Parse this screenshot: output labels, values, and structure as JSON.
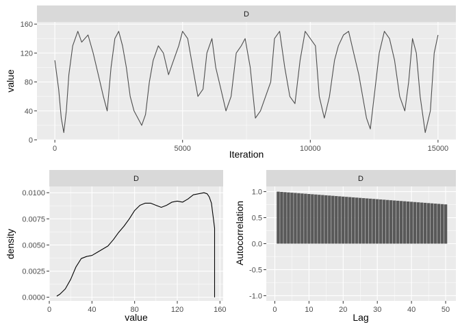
{
  "colors": {
    "panel_bg": "#ebebeb",
    "grid_major": "#ffffff",
    "strip_bg": "#d9d9d9",
    "trace_line": "#4d4d4d",
    "density_line": "#000000",
    "acf_bar": "#595959",
    "tick_text": "#4d4d4d"
  },
  "chart_data": [
    {
      "type": "line",
      "name": "trace",
      "strip": "D",
      "xlabel": "Iteration",
      "ylabel": "value",
      "xlim": [
        -700,
        15700
      ],
      "ylim": [
        0,
        163
      ],
      "x_ticks": [
        0,
        5000,
        10000,
        15000
      ],
      "y_ticks": [
        0,
        40,
        80,
        120,
        160
      ],
      "grid": true,
      "series": [
        {
          "x": [
            0,
            150,
            250,
            350,
            450,
            550,
            700,
            900,
            1050,
            1300,
            1500,
            1700,
            1900,
            2050,
            2200,
            2350,
            2500,
            2650,
            2800,
            2950,
            3100,
            3250,
            3400,
            3550,
            3700,
            3850,
            4050,
            4250,
            4450,
            4650,
            4850,
            5000,
            5200,
            5400,
            5600,
            5800,
            5950,
            6150,
            6300,
            6500,
            6700,
            6900,
            7100,
            7300,
            7450,
            7650,
            7850,
            8050,
            8250,
            8450,
            8600,
            8800,
            9000,
            9200,
            9400,
            9600,
            9800,
            10000,
            10200,
            10350,
            10550,
            10750,
            10950,
            11100,
            11300,
            11500,
            11700,
            11900,
            12050,
            12200,
            12350,
            12500,
            12700,
            12900,
            13100,
            13300,
            13500,
            13700,
            13850,
            14000,
            14150,
            14300,
            14500,
            14700,
            14850,
            15000
          ],
          "y": [
            110,
            70,
            30,
            10,
            40,
            90,
            130,
            150,
            135,
            145,
            120,
            90,
            60,
            40,
            100,
            140,
            150,
            130,
            100,
            60,
            40,
            30,
            20,
            35,
            80,
            110,
            130,
            120,
            90,
            110,
            130,
            150,
            140,
            100,
            60,
            70,
            120,
            140,
            100,
            70,
            40,
            60,
            120,
            130,
            140,
            100,
            30,
            40,
            60,
            80,
            140,
            150,
            100,
            60,
            50,
            110,
            150,
            140,
            130,
            60,
            30,
            60,
            110,
            130,
            145,
            150,
            120,
            90,
            60,
            30,
            15,
            60,
            120,
            150,
            140,
            110,
            60,
            40,
            80,
            140,
            120,
            60,
            10,
            40,
            120,
            145
          ]
        }
      ]
    },
    {
      "type": "line",
      "name": "density",
      "strip": "D",
      "xlabel": "value",
      "ylabel": "density",
      "xlim": [
        0,
        163
      ],
      "ylim": [
        -0.00035,
        0.0106
      ],
      "x_ticks": [
        0,
        40,
        80,
        120,
        160
      ],
      "y_ticks": [
        0.0,
        0.0025,
        0.005,
        0.0075,
        0.01
      ],
      "y_tick_labels": [
        "0.0000",
        "0.0025",
        "0.0050",
        "0.0075",
        "0.0100"
      ],
      "grid": true,
      "series": [
        {
          "x": [
            7,
            10,
            15,
            20,
            25,
            30,
            35,
            40,
            45,
            50,
            55,
            60,
            65,
            70,
            75,
            80,
            85,
            90,
            95,
            100,
            105,
            110,
            115,
            120,
            125,
            130,
            135,
            140,
            145,
            148,
            150,
            152,
            153,
            154,
            155,
            155
          ],
          "y": [
            0.0001,
            0.0003,
            0.0008,
            0.0017,
            0.0029,
            0.0037,
            0.0039,
            0.004,
            0.0043,
            0.0046,
            0.0049,
            0.0055,
            0.0062,
            0.0068,
            0.0075,
            0.0083,
            0.0088,
            0.009,
            0.009,
            0.0088,
            0.0086,
            0.0088,
            0.0091,
            0.0092,
            0.0091,
            0.0094,
            0.0098,
            0.0099,
            0.01,
            0.0099,
            0.0096,
            0.009,
            0.0082,
            0.0074,
            0.0066,
            0.0
          ]
        }
      ]
    },
    {
      "type": "bar",
      "name": "autocorrelation",
      "strip": "D",
      "xlabel": "Lag",
      "ylabel": "Autocorrelation",
      "xlim": [
        -2.5,
        53
      ],
      "ylim": [
        -1.1,
        1.1
      ],
      "x_ticks": [
        0,
        10,
        20,
        30,
        40,
        50
      ],
      "y_ticks": [
        -1.0,
        -0.5,
        0.0,
        0.5,
        1.0
      ],
      "y_tick_labels": [
        "-1.0",
        "-0.5",
        "0.0",
        "0.5",
        "1.0"
      ],
      "grid": true,
      "categories": [
        1,
        2,
        3,
        4,
        5,
        6,
        7,
        8,
        9,
        10,
        11,
        12,
        13,
        14,
        15,
        16,
        17,
        18,
        19,
        20,
        21,
        22,
        23,
        24,
        25,
        26,
        27,
        28,
        29,
        30,
        31,
        32,
        33,
        34,
        35,
        36,
        37,
        38,
        39,
        40,
        41,
        42,
        43,
        44,
        45,
        46,
        47,
        48,
        49,
        50
      ],
      "values": [
        1.0,
        0.995,
        0.99,
        0.985,
        0.98,
        0.975,
        0.97,
        0.965,
        0.96,
        0.955,
        0.95,
        0.945,
        0.94,
        0.935,
        0.93,
        0.925,
        0.92,
        0.915,
        0.91,
        0.905,
        0.9,
        0.895,
        0.89,
        0.885,
        0.88,
        0.875,
        0.87,
        0.865,
        0.86,
        0.855,
        0.85,
        0.845,
        0.84,
        0.835,
        0.83,
        0.825,
        0.82,
        0.815,
        0.81,
        0.805,
        0.8,
        0.795,
        0.79,
        0.785,
        0.78,
        0.775,
        0.77,
        0.765,
        0.76,
        0.755
      ]
    }
  ]
}
